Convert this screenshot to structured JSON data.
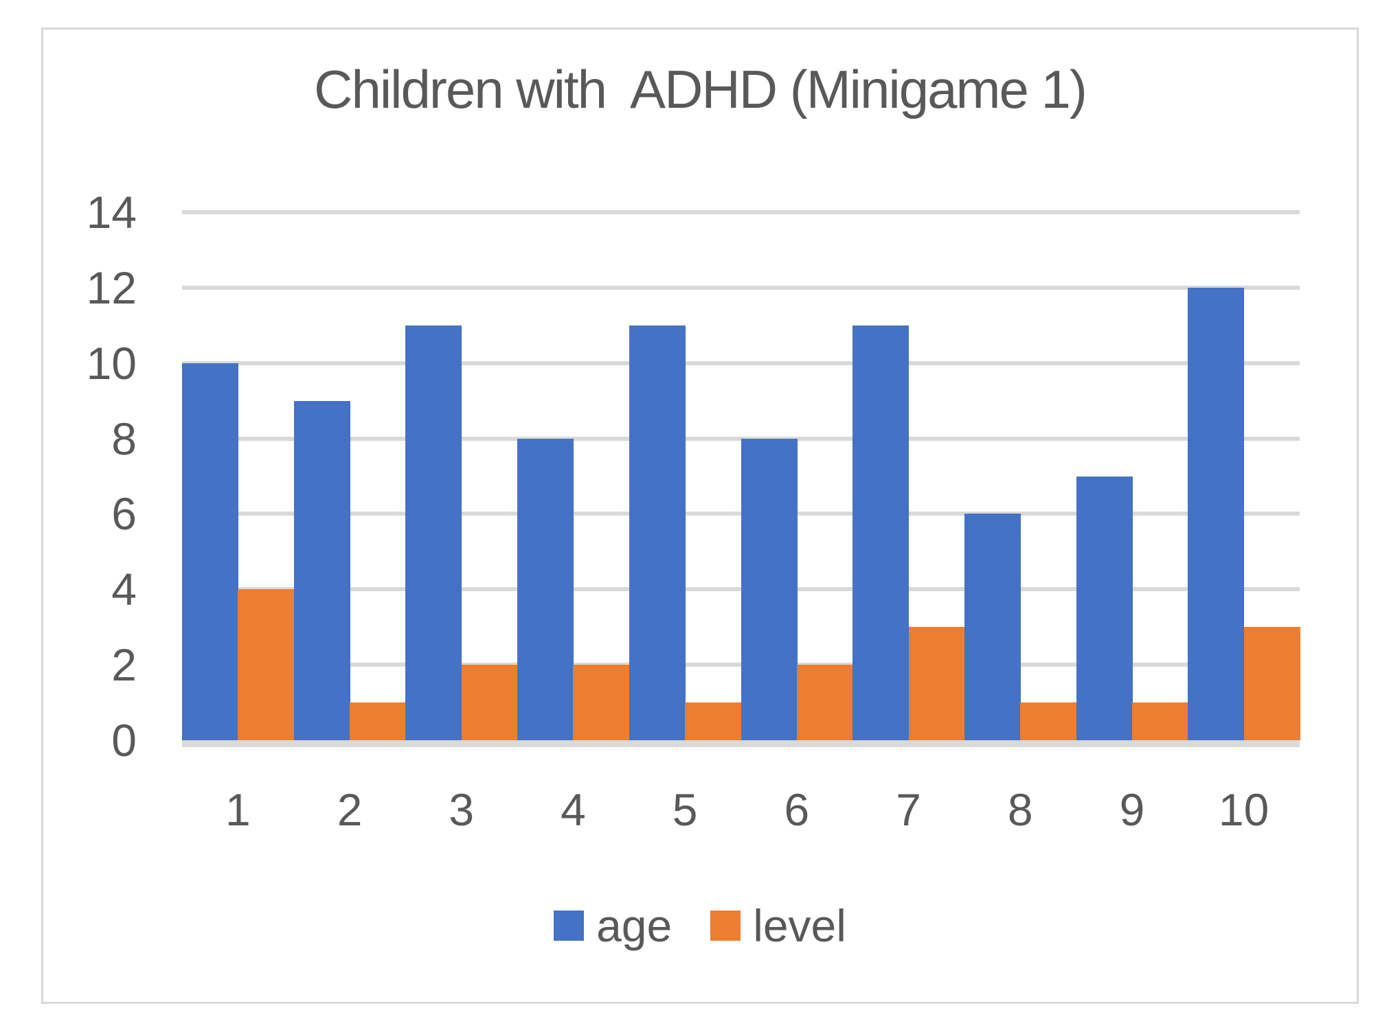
{
  "chart_data": {
    "type": "bar",
    "title": "Children with  ADHD (Minigame 1)",
    "categories": [
      "1",
      "2",
      "3",
      "4",
      "5",
      "6",
      "7",
      "8",
      "9",
      "10"
    ],
    "series": [
      {
        "name": "age",
        "color": "#4472c4",
        "values": [
          10,
          9,
          11,
          8,
          11,
          8,
          11,
          6,
          7,
          12
        ]
      },
      {
        "name": "level",
        "color": "#ed7d31",
        "values": [
          4,
          1,
          2,
          2,
          1,
          2,
          3,
          1,
          1,
          3
        ]
      }
    ],
    "xlabel": "",
    "ylabel": "",
    "ylim": [
      0,
      14
    ],
    "ytick_step": 2,
    "yticks": [
      0,
      2,
      4,
      6,
      8,
      10,
      12,
      14
    ],
    "grid": true,
    "gridline_color": "#d9d9d9",
    "text_color": "#595959",
    "legend_position": "bottom",
    "bar_gap_within_group": 0,
    "bar_gap_between_groups": 0
  }
}
